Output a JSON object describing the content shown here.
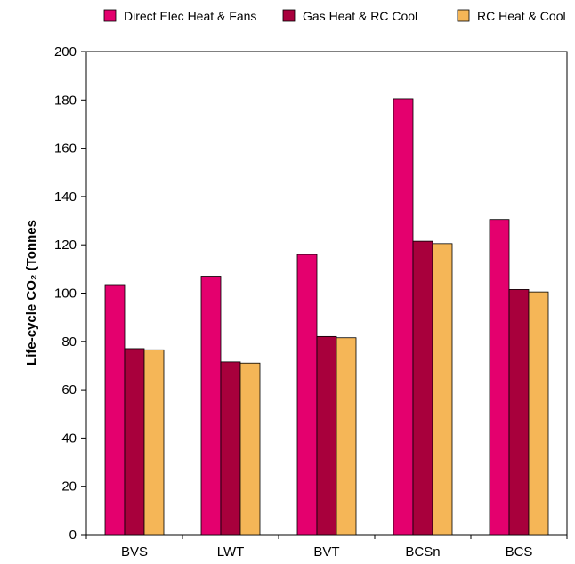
{
  "chart_data": {
    "type": "bar",
    "categories": [
      "BVS",
      "LWT",
      "BVT",
      "BCSn",
      "BCS"
    ],
    "series": [
      {
        "name": "Direct Elec Heat & Fans",
        "color": "#e4006e",
        "values": [
          103.5,
          107,
          116,
          180.5,
          130.5
        ]
      },
      {
        "name": "Gas Heat & RC Cool",
        "color": "#a8003c",
        "values": [
          77,
          71.5,
          82,
          121.5,
          101.5
        ]
      },
      {
        "name": "RC Heat & Cool",
        "color": "#f5b657",
        "values": [
          76.5,
          71,
          81.5,
          120.5,
          100.5
        ]
      }
    ],
    "ylabel": "Life-cycle CO₂ (Tonnes",
    "ylim": [
      0,
      200
    ],
    "yticks": [
      0,
      20,
      40,
      60,
      80,
      100,
      120,
      140,
      160,
      180,
      200
    ],
    "grid": false,
    "legend_position": "top"
  }
}
